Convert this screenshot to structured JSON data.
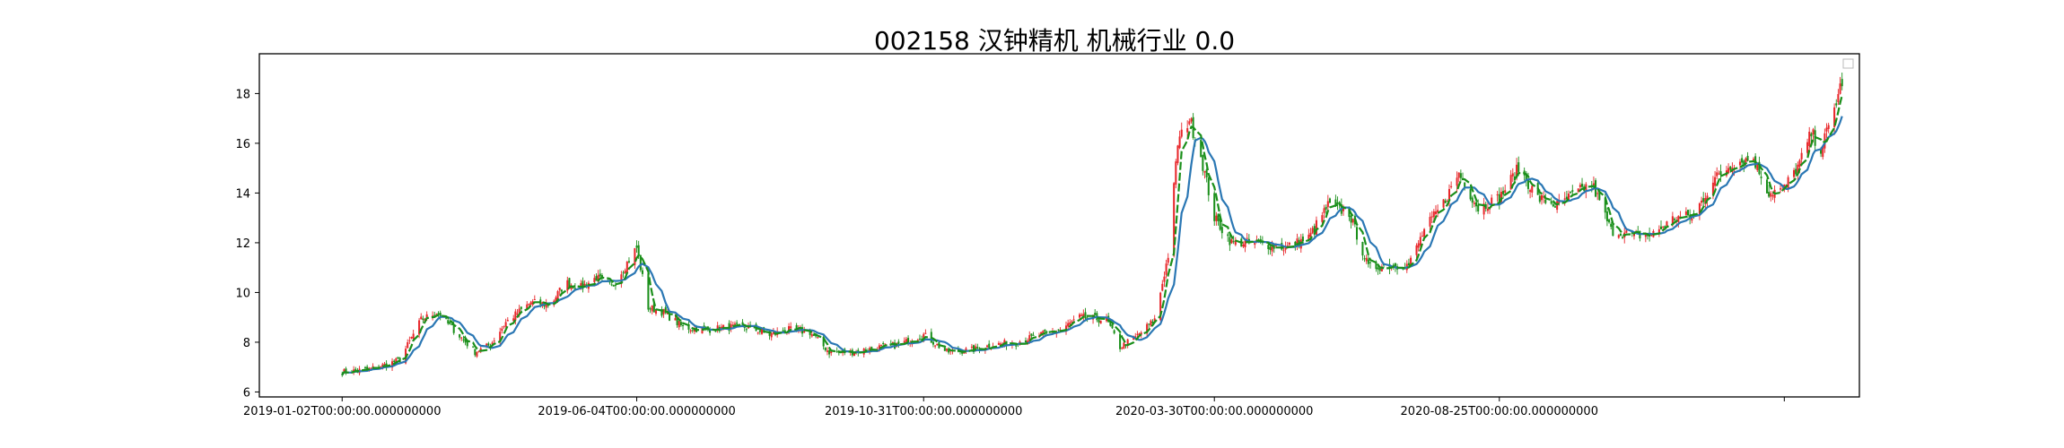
{
  "chart_data": {
    "type": "candlestick",
    "title": "002158 汉钟精机 机械行业 0.0",
    "xlabel": "",
    "ylabel": "",
    "ylim": [
      5.8,
      19.6
    ],
    "y_ticks": [
      6,
      8,
      10,
      12,
      14,
      16,
      18
    ],
    "x_ticks": [
      {
        "date": "2019-01-02",
        "label": "2019-01-02T00:00:00.000000000"
      },
      {
        "date": "2019-06-04",
        "label": "2019-06-04T00:00:00.000000000"
      },
      {
        "date": "2019-10-31",
        "label": "2019-10-31T00:00:00.000000000"
      },
      {
        "date": "2020-03-30",
        "label": "2020-03-30T00:00:00.000000000"
      },
      {
        "date": "2020-08-25",
        "label": "2020-08-25T00:00:00.000000000"
      },
      {
        "date": "2021-01-20",
        "label": ""
      }
    ],
    "x_range": [
      "2018-11-20",
      "2021-02-28"
    ],
    "up_color": "#e8262a",
    "down_color": "#1a8f1a",
    "ma_short_color": "#1a8f1a",
    "ma_long_color": "#2a77b4",
    "legend": "top-right",
    "grid": false,
    "close_series": [
      [
        "2019-01-02",
        6.8
      ],
      [
        "2019-01-15",
        6.9
      ],
      [
        "2019-01-25",
        7.1
      ],
      [
        "2019-02-01",
        7.3
      ],
      [
        "2019-02-12",
        8.9
      ],
      [
        "2019-02-20",
        9.2
      ],
      [
        "2019-03-01",
        8.5
      ],
      [
        "2019-03-12",
        7.6
      ],
      [
        "2019-03-20",
        7.9
      ],
      [
        "2019-03-28",
        8.8
      ],
      [
        "2019-04-10",
        9.6
      ],
      [
        "2019-04-20",
        9.5
      ],
      [
        "2019-04-28",
        10.4
      ],
      [
        "2019-05-06",
        10.2
      ],
      [
        "2019-05-14",
        10.6
      ],
      [
        "2019-05-22",
        10.2
      ],
      [
        "2019-05-30",
        11.2
      ],
      [
        "2019-06-04",
        11.8
      ],
      [
        "2019-06-10",
        9.4
      ],
      [
        "2019-06-18",
        9.2
      ],
      [
        "2019-06-28",
        8.6
      ],
      [
        "2019-07-10",
        8.5
      ],
      [
        "2019-07-22",
        8.6
      ],
      [
        "2019-08-01",
        8.6
      ],
      [
        "2019-08-12",
        8.3
      ],
      [
        "2019-08-22",
        8.5
      ],
      [
        "2019-09-02",
        8.4
      ],
      [
        "2019-09-12",
        7.6
      ],
      [
        "2019-09-24",
        7.6
      ],
      [
        "2019-10-08",
        7.8
      ],
      [
        "2019-10-18",
        7.9
      ],
      [
        "2019-10-31",
        8.3
      ],
      [
        "2019-11-12",
        7.6
      ],
      [
        "2019-11-26",
        7.7
      ],
      [
        "2019-12-06",
        7.9
      ],
      [
        "2019-12-18",
        8.0
      ],
      [
        "2019-12-31",
        8.3
      ],
      [
        "2020-01-10",
        8.5
      ],
      [
        "2020-01-20",
        9.0
      ],
      [
        "2020-02-03",
        8.9
      ],
      [
        "2020-02-10",
        7.8
      ],
      [
        "2020-02-18",
        8.2
      ],
      [
        "2020-02-28",
        8.9
      ],
      [
        "2020-03-06",
        11.5
      ],
      [
        "2020-03-11",
        16.0
      ],
      [
        "2020-03-17",
        17.0
      ],
      [
        "2020-03-23",
        15.5
      ],
      [
        "2020-03-30",
        13.0
      ],
      [
        "2020-04-08",
        12.0
      ],
      [
        "2020-04-20",
        12.0
      ],
      [
        "2020-05-06",
        11.8
      ],
      [
        "2020-05-18",
        12.2
      ],
      [
        "2020-05-28",
        13.5
      ],
      [
        "2020-06-08",
        13.2
      ],
      [
        "2020-06-18",
        11.0
      ],
      [
        "2020-06-30",
        11.1
      ],
      [
        "2020-07-09",
        11.1
      ],
      [
        "2020-07-17",
        12.5
      ],
      [
        "2020-07-27",
        13.6
      ],
      [
        "2020-08-04",
        14.8
      ],
      [
        "2020-08-14",
        13.4
      ],
      [
        "2020-08-25",
        13.8
      ],
      [
        "2020-09-04",
        15.0
      ],
      [
        "2020-09-14",
        13.8
      ],
      [
        "2020-09-24",
        13.5
      ],
      [
        "2020-10-12",
        14.4
      ],
      [
        "2020-10-22",
        12.5
      ],
      [
        "2020-11-02",
        12.3
      ],
      [
        "2020-11-12",
        12.3
      ],
      [
        "2020-11-24",
        13.0
      ],
      [
        "2020-12-04",
        13.1
      ],
      [
        "2020-12-14",
        14.5
      ],
      [
        "2020-12-24",
        15.2
      ],
      [
        "2021-01-04",
        15.4
      ],
      [
        "2021-01-12",
        14.0
      ],
      [
        "2021-01-20",
        14.2
      ],
      [
        "2021-01-28",
        15.2
      ],
      [
        "2021-02-03",
        16.4
      ],
      [
        "2021-02-08",
        15.8
      ],
      [
        "2021-02-12",
        16.6
      ],
      [
        "2021-02-19",
        18.5
      ]
    ]
  }
}
